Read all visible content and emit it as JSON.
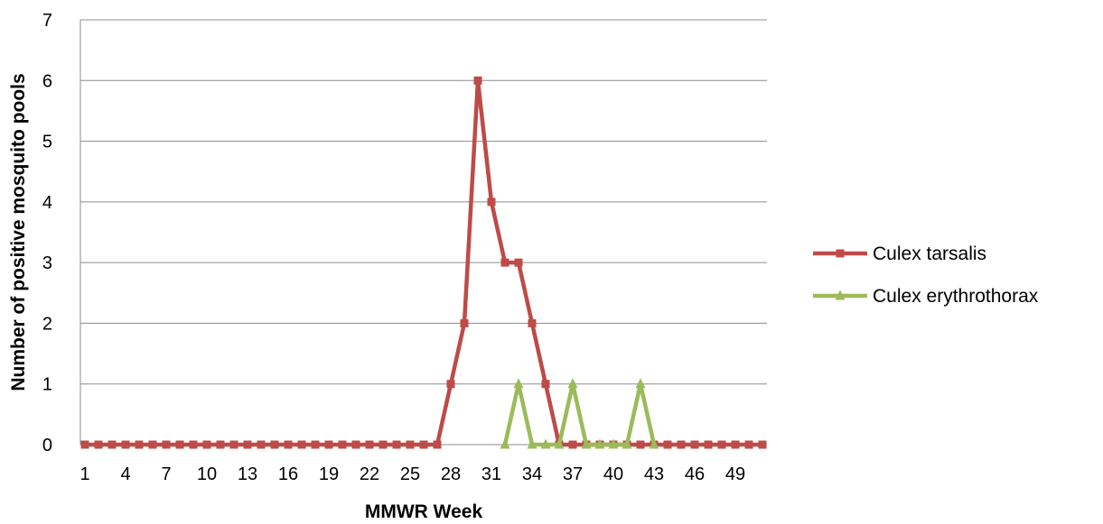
{
  "chart_data": {
    "type": "line",
    "title": "",
    "xlabel": "MMWR Week",
    "ylabel": "Number of positive mosquito pools",
    "ylim": [
      0,
      7
    ],
    "yticks": [
      0,
      1,
      2,
      3,
      4,
      5,
      6,
      7
    ],
    "xlim": [
      1,
      51
    ],
    "xtick_labels": [
      "1",
      "4",
      "7",
      "10",
      "13",
      "16",
      "19",
      "22",
      "25",
      "28",
      "31",
      "34",
      "37",
      "40",
      "43",
      "46",
      "49"
    ],
    "grid": "horizontal",
    "legend_position": "right",
    "series": [
      {
        "name": "Culex tarsalis",
        "color": "#be4b48",
        "marker": "square",
        "x": [
          1,
          2,
          3,
          4,
          5,
          6,
          7,
          8,
          9,
          10,
          11,
          12,
          13,
          14,
          15,
          16,
          17,
          18,
          19,
          20,
          21,
          22,
          23,
          24,
          25,
          26,
          27,
          28,
          29,
          30,
          31,
          32,
          33,
          34,
          35,
          36,
          37,
          38,
          39,
          40,
          41,
          42,
          43,
          44,
          45,
          46,
          47,
          48,
          49,
          50,
          51
        ],
        "values": [
          0,
          0,
          0,
          0,
          0,
          0,
          0,
          0,
          0,
          0,
          0,
          0,
          0,
          0,
          0,
          0,
          0,
          0,
          0,
          0,
          0,
          0,
          0,
          0,
          0,
          0,
          0,
          1,
          2,
          6,
          4,
          3,
          3,
          2,
          1,
          0,
          0,
          0,
          0,
          0,
          0,
          0,
          0,
          0,
          0,
          0,
          0,
          0,
          0,
          0,
          0
        ]
      },
      {
        "name": "Culex erythrothorax",
        "color": "#9bbb59",
        "marker": "triangle",
        "x": [
          32,
          33,
          34,
          35,
          36,
          37,
          38,
          39,
          40,
          41,
          42,
          43
        ],
        "values": [
          0,
          1,
          0,
          0,
          0,
          1,
          0,
          0,
          0,
          0,
          1,
          0
        ]
      }
    ]
  }
}
